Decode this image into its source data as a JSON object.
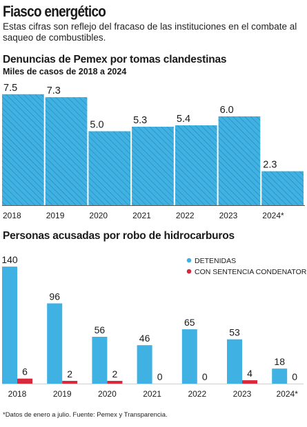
{
  "header": {
    "title": "Fiasco energético",
    "subtitle": "Estas cifras son reflejo del fracaso de las instituciones en el combate al saqueo de combustibles."
  },
  "footnote": "*Datos de enero a julio. Fuente: Pemex y Transparencia.",
  "colors": {
    "primary": "#3fb2e3",
    "secondary": "#d8283c",
    "hatch": "#2a86b0"
  },
  "chart_data": [
    {
      "type": "bar",
      "title": "Denuncias de Pemex por tomas clandestinas",
      "subtitle": "Miles de casos de 2018 a 2024",
      "categories": [
        "2018",
        "2019",
        "2020",
        "2021",
        "2022",
        "2023",
        "2024*"
      ],
      "values": [
        7.5,
        7.3,
        5.0,
        5.3,
        5.4,
        6.0,
        2.3
      ],
      "value_labels": [
        "7.5",
        "7.3",
        "5.0",
        "5.3",
        "5.4",
        "6.0",
        "2.3"
      ],
      "ylim": [
        0,
        8
      ],
      "grid": false
    },
    {
      "type": "bar",
      "title": "Personas acusadas por robo de hidrocarburos",
      "categories": [
        "2018",
        "2019",
        "2020",
        "2021",
        "2022",
        "2023",
        "2024*"
      ],
      "series": [
        {
          "name": "DETENIDAS",
          "values": [
            140,
            96,
            56,
            46,
            65,
            53,
            18
          ]
        },
        {
          "name": "CON SENTENCIA CONDENATORIA",
          "values": [
            6,
            2,
            2,
            0,
            0,
            4,
            0
          ]
        }
      ],
      "ylim": [
        0,
        145
      ],
      "legend": "top-right",
      "grid": false
    }
  ]
}
